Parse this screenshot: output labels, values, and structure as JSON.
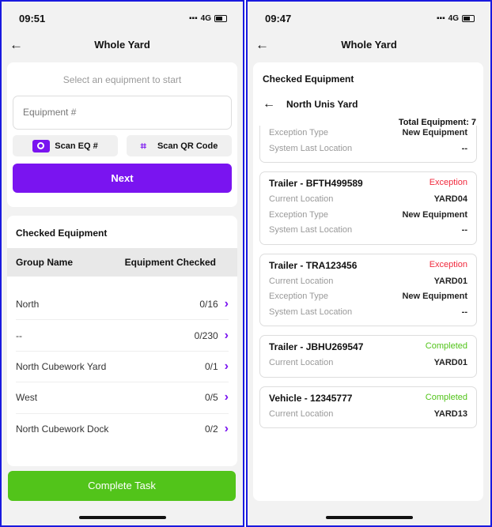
{
  "left": {
    "time": "09:51",
    "network": "4G",
    "title": "Whole Yard",
    "hint": "Select an equipment to start",
    "equipment_placeholder": "Equipment #",
    "scan_eq": "Scan EQ #",
    "scan_qr": "Scan QR Code",
    "next": "Next",
    "checked_title": "Checked Equipment",
    "col_group": "Group Name",
    "col_checked": "Equipment Checked",
    "groups": [
      {
        "name": "North",
        "count": "0/16"
      },
      {
        "name": "--",
        "count": "0/230"
      },
      {
        "name": "North Cubework Yard",
        "count": "0/1"
      },
      {
        "name": "West",
        "count": "0/5"
      },
      {
        "name": "North Cubework Dock",
        "count": "0/2"
      }
    ],
    "complete": "Complete Task"
  },
  "right": {
    "time": "09:47",
    "network": "4G",
    "title": "Whole Yard",
    "checked_title": "Checked Equipment",
    "yard": "North Unis Yard",
    "total": "Total Equipment: 7",
    "partial": {
      "exception_type_label": "Exception Type",
      "exception_type": "New Equipment",
      "last_loc_label": "System Last Location",
      "last_loc": "--"
    },
    "items": [
      {
        "title": "Trailer - BFTH499589",
        "status": "Exception",
        "cur_label": "Current Location",
        "cur": "YARD04",
        "type_label": "Exception Type",
        "type": "New Equipment",
        "last_label": "System Last Location",
        "last": "--"
      },
      {
        "title": "Trailer - TRA123456",
        "status": "Exception",
        "cur_label": "Current Location",
        "cur": "YARD01",
        "type_label": "Exception Type",
        "type": "New Equipment",
        "last_label": "System Last Location",
        "last": "--"
      },
      {
        "title": "Trailer - JBHU269547",
        "status": "Completed",
        "cur_label": "Current Location",
        "cur": "YARD01"
      },
      {
        "title": "Vehicle - 12345777",
        "status": "Completed",
        "cur_label": "Current Location",
        "cur": "YARD13"
      }
    ]
  },
  "colors": {
    "accent": "#7a14f0",
    "success": "#52c41a",
    "exception": "#f0283c",
    "frame": "#1a1adf"
  }
}
